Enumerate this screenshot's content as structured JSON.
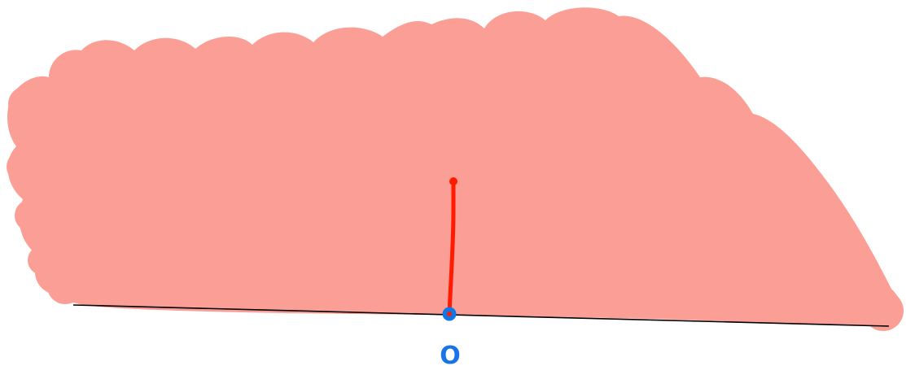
{
  "figure": {
    "point_label": "O"
  },
  "colors": {
    "fill": "#fb9f96",
    "baseline": "#000000",
    "segment": "#ff1a00",
    "point": "#0f78e6",
    "point_label": "#1a73e8"
  }
}
